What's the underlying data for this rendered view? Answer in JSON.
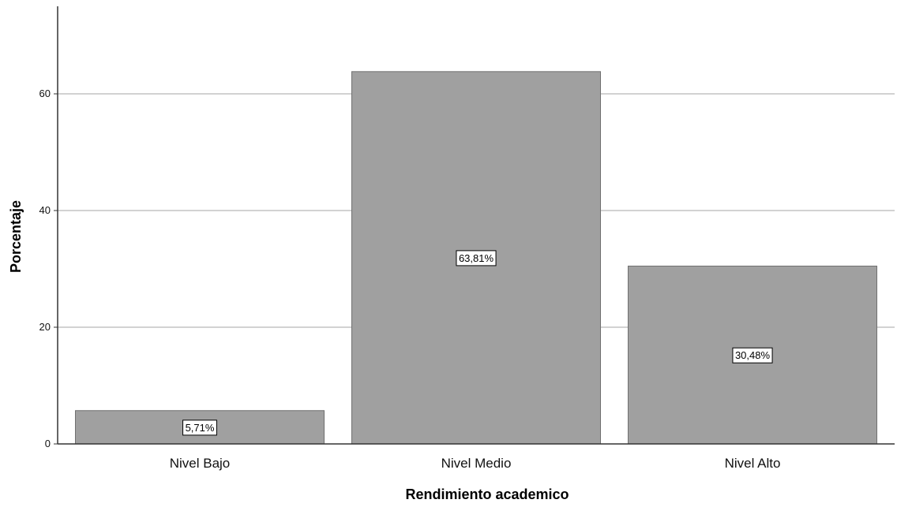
{
  "chart_data": {
    "type": "bar",
    "title": "",
    "xlabel": "Rendimiento academico",
    "ylabel": "Porcentaje",
    "categories": [
      "Nivel Bajo",
      "Nivel Medio",
      "Nivel Alto"
    ],
    "values": [
      5.71,
      63.81,
      30.48
    ],
    "data_labels": [
      "5,71%",
      "63,81%",
      "30,48%"
    ],
    "ylim": [
      0,
      75
    ],
    "yticks": [
      0,
      20,
      40,
      60
    ],
    "ytick_labels": [
      "0",
      "20",
      "40",
      "60"
    ],
    "grid": true,
    "legend": "none",
    "colors": {
      "bar_fill": "#a0a0a0",
      "bar_stroke": "#707070",
      "gridline": "#c4c4c4",
      "axis": "#333333",
      "background": "#ffffff"
    }
  }
}
